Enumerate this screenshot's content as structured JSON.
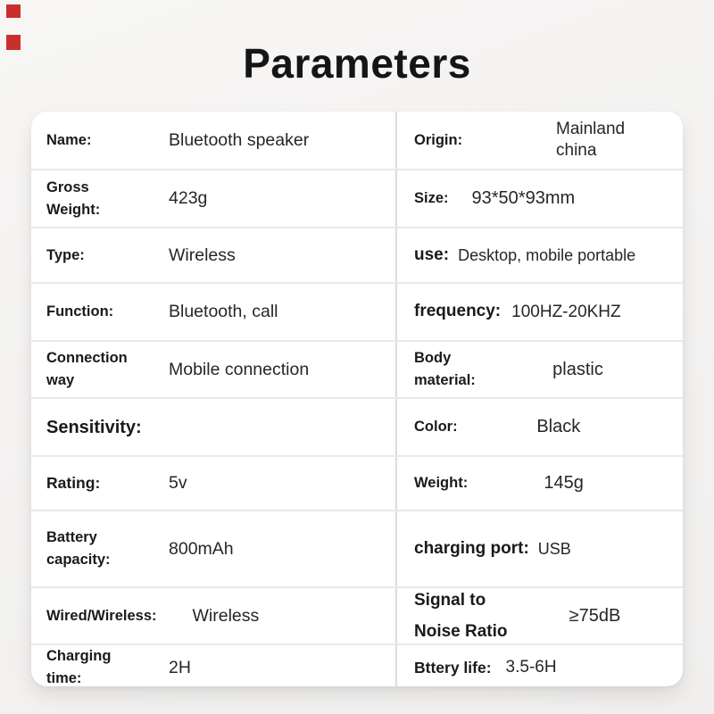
{
  "title": "Parameters",
  "marks": {
    "color": "#c9302c",
    "description": "two small red rectangles, top-left corner"
  },
  "table": {
    "rows": [
      {
        "left": {
          "label": "Name:",
          "value": "Bluetooth speaker"
        },
        "right": {
          "label": "Origin:",
          "value": "Mainland china"
        }
      },
      {
        "left": {
          "label": "Gross Weight:",
          "value": "423g"
        },
        "right": {
          "label": "Size:",
          "value": "93*50*93mm"
        }
      },
      {
        "left": {
          "label": "Type:",
          "value": "Wireless"
        },
        "right": {
          "label": "use:",
          "value": "Desktop, mobile portable"
        }
      },
      {
        "left": {
          "label": "Function:",
          "value": "Bluetooth, call"
        },
        "right": {
          "label": "frequency:",
          "value": "100HZ-20KHZ"
        }
      },
      {
        "left": {
          "label": "Connection way",
          "value": "Mobile connection"
        },
        "right": {
          "label": "Body material:",
          "value": "plastic"
        }
      },
      {
        "left": {
          "label": "Sensitivity:",
          "value": ""
        },
        "right": {
          "label": "Color:",
          "value": "Black"
        }
      },
      {
        "left": {
          "label": "Rating:",
          "value": "5v"
        },
        "right": {
          "label": "Weight:",
          "value": "145g"
        }
      },
      {
        "left": {
          "label": "Battery capacity:",
          "value": "800mAh"
        },
        "right": {
          "label": "charging port:",
          "value": "USB"
        }
      },
      {
        "left": {
          "label": "Wired/Wireless:",
          "value": "Wireless"
        },
        "right": {
          "label": "Signal to Noise Ratio",
          "value": "≥75dB"
        }
      },
      {
        "left": {
          "label": "Charging time:",
          "value": "2H"
        },
        "right": {
          "label": "Bttery life:",
          "value": "3.5-6H"
        }
      }
    ]
  }
}
